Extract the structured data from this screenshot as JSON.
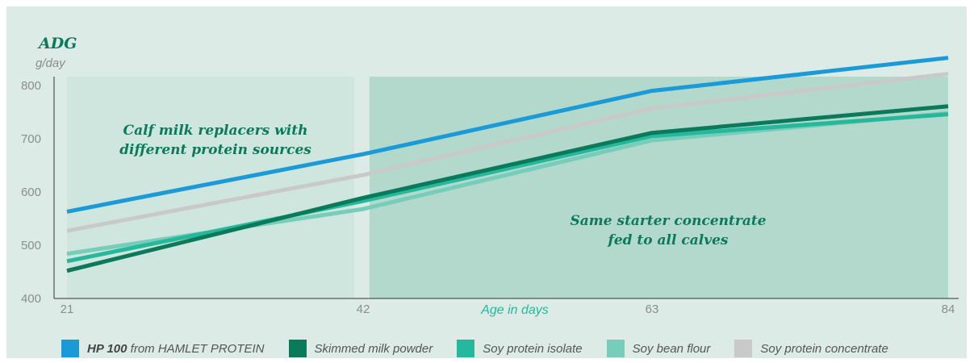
{
  "chart_data": {
    "type": "line",
    "ylabel": "ADG",
    "yunit": "g/day",
    "xlabel": "Age in days",
    "x": [
      21,
      42,
      63,
      84
    ],
    "ylim": [
      400,
      850
    ],
    "yticks": [
      400,
      500,
      600,
      700,
      800
    ],
    "xticks": [
      21,
      42,
      63,
      84
    ],
    "series": [
      {
        "name": "HP 100 from HAMLET PROTEIN",
        "name_bold": "HP 100",
        "name_rest": " from HAMLET PROTEIN",
        "color": "#1a9ad6",
        "values": [
          563,
          671,
          790,
          852
        ]
      },
      {
        "name": "Soy protein concentrate",
        "color": "#c9c9c9",
        "values": [
          527,
          632,
          757,
          822
        ]
      },
      {
        "name": "Skimmed milk powder",
        "color": "#0a7a5a",
        "values": [
          452,
          589,
          711,
          761
        ]
      },
      {
        "name": "Soy protein isolate",
        "color": "#25b89c",
        "values": [
          470,
          583,
          705,
          746
        ]
      },
      {
        "name": "Soy bean flour",
        "color": "#76cdb9",
        "values": [
          484,
          568,
          697,
          748
        ]
      }
    ],
    "regions": [
      {
        "label_lines": [
          "Calf milk replacers with",
          "different protein sources"
        ],
        "x": [
          21,
          42
        ],
        "color": "#cfe6de"
      },
      {
        "label_lines": [
          "Same starter concentrate",
          "fed to all calves"
        ],
        "x": [
          42,
          84
        ],
        "color": "#b3d9cd"
      }
    ],
    "legend_order": [
      "HP 100 from HAMLET PROTEIN",
      "Skimmed milk powder",
      "Soy protein isolate",
      "Soy bean flour",
      "Soy protein concentrate"
    ],
    "grid": false,
    "legend": "bottom"
  }
}
